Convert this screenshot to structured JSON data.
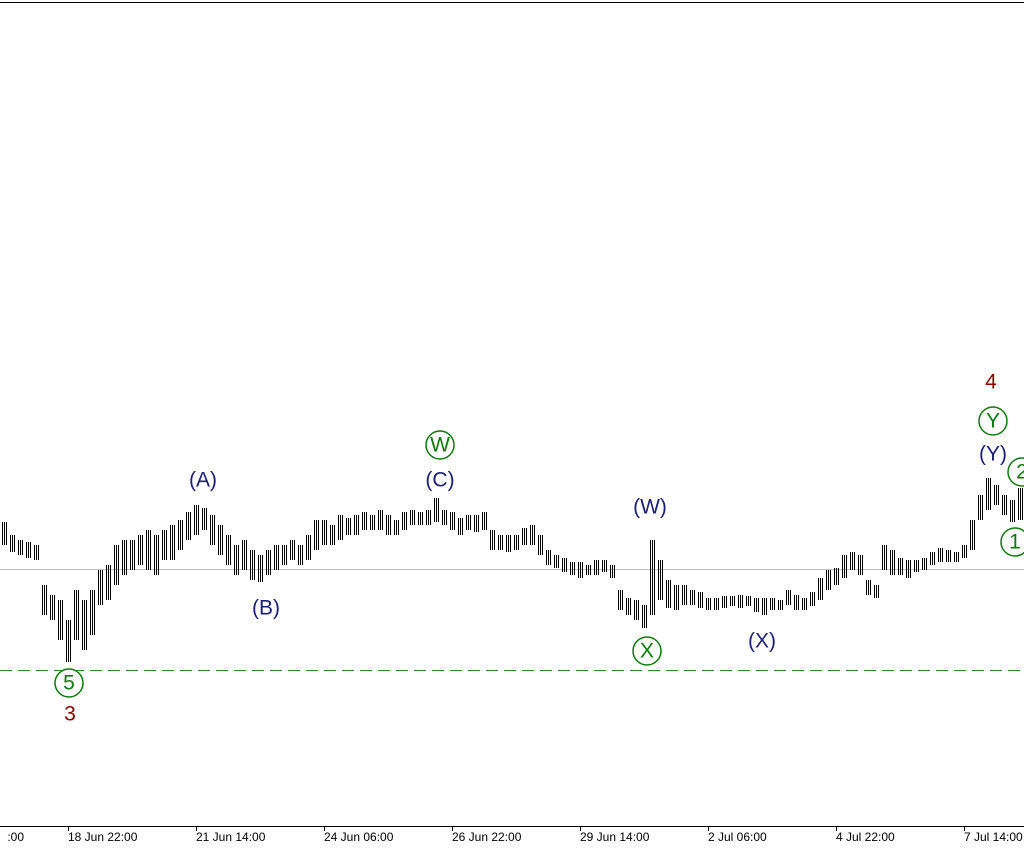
{
  "chart_data": {
    "type": "hilo",
    "categories": [
      ":00",
      null,
      null,
      null,
      null,
      null,
      null,
      null,
      "18 Jun 22:00",
      null,
      null,
      null,
      null,
      null,
      null,
      null,
      null,
      null,
      null,
      null,
      null,
      null,
      null,
      null,
      "21 Jun 14:00",
      null,
      null,
      null,
      null,
      null,
      null,
      null,
      null,
      null,
      null,
      null,
      null,
      null,
      null,
      null,
      "24 Jun 06:00",
      null,
      null,
      null,
      null,
      null,
      null,
      null,
      null,
      null,
      null,
      null,
      null,
      null,
      null,
      null,
      "26 Jun 22:00",
      null,
      null,
      null,
      null,
      null,
      null,
      null,
      null,
      null,
      null,
      null,
      null,
      null,
      null,
      null,
      "29 Jun 14:00",
      null,
      null,
      null,
      null,
      null,
      null,
      null,
      null,
      null,
      null,
      null,
      null,
      null,
      null,
      null,
      "2 Jul 06:00",
      null,
      null,
      null,
      null,
      null,
      null,
      null,
      null,
      null,
      null,
      null,
      null,
      null,
      null,
      null,
      "4 Jul 22:00",
      null,
      null,
      null,
      null,
      null,
      null,
      null,
      null,
      null,
      null,
      null,
      null,
      null,
      null,
      null,
      "7 Jul 14:00",
      null,
      null,
      null,
      null,
      null,
      null,
      null
    ],
    "high": [
      300,
      287,
      282,
      280,
      277,
      237,
      227,
      222,
      202,
      232,
      222,
      232,
      252,
      257,
      277,
      282,
      282,
      287,
      292,
      287,
      292,
      297,
      302,
      310,
      317,
      314,
      307,
      297,
      287,
      277,
      282,
      272,
      267,
      272,
      277,
      277,
      282,
      277,
      287,
      302,
      302,
      297,
      307,
      304,
      307,
      310,
      307,
      312,
      307,
      302,
      310,
      312,
      310,
      312,
      324,
      312,
      310,
      304,
      307,
      307,
      310,
      292,
      287,
      287,
      287,
      294,
      297,
      287,
      272,
      267,
      264,
      260,
      260,
      257,
      262,
      262,
      257,
      232,
      224,
      222,
      217,
      282,
      262,
      242,
      237,
      237,
      232,
      230,
      224,
      224,
      226,
      226,
      227,
      226,
      224,
      224,
      224,
      222,
      232,
      227,
      224,
      230,
      244,
      252,
      254,
      267,
      270,
      267,
      242,
      237,
      277,
      272,
      264,
      262,
      262,
      264,
      270,
      274,
      272,
      270,
      277,
      302,
      327,
      344,
      337,
      327,
      322,
      334
    ],
    "low": [
      277,
      270,
      267,
      264,
      262,
      207,
      202,
      182,
      160,
      182,
      172,
      187,
      217,
      222,
      237,
      247,
      252,
      257,
      252,
      247,
      262,
      262,
      272,
      282,
      287,
      292,
      277,
      267,
      257,
      247,
      252,
      242,
      240,
      247,
      252,
      257,
      262,
      257,
      262,
      272,
      277,
      277,
      282,
      287,
      287,
      292,
      292,
      292,
      287,
      287,
      292,
      297,
      297,
      297,
      300,
      297,
      292,
      287,
      292,
      290,
      292,
      272,
      272,
      270,
      272,
      277,
      277,
      267,
      257,
      254,
      250,
      247,
      244,
      247,
      247,
      250,
      244,
      212,
      207,
      202,
      194,
      207,
      222,
      214,
      212,
      217,
      217,
      214,
      212,
      212,
      214,
      216,
      214,
      216,
      210,
      207,
      212,
      212,
      217,
      212,
      212,
      216,
      222,
      232,
      237,
      244,
      252,
      247,
      227,
      224,
      252,
      247,
      247,
      244,
      250,
      252,
      257,
      260,
      260,
      260,
      264,
      272,
      302,
      312,
      317,
      307,
      300,
      302
    ],
    "color": "#000000",
    "ylim": [
      0,
      822
    ],
    "price_line": 253,
    "price_line_color": "#c0c0c0",
    "level_line": 152,
    "level_line_color": "#2e8b2e",
    "annotations": [
      {
        "text": "(A)",
        "color": "#1c2077",
        "circled": false
      },
      {
        "text": "(B)",
        "color": "#1c2077",
        "circled": false
      },
      {
        "text": "(C)",
        "color": "#1c2077",
        "circled": false
      },
      {
        "text": "W",
        "color": "#0d7a0d",
        "circled": true
      },
      {
        "text": "(W)",
        "color": "#1c2077",
        "circled": false
      },
      {
        "text": "X",
        "color": "#0d7a0d",
        "circled": true
      },
      {
        "text": "(X)",
        "color": "#1c2077",
        "circled": false
      },
      {
        "text": "Y",
        "color": "#0d7a0d",
        "circled": true
      },
      {
        "text": "(Y)",
        "color": "#1c2077",
        "circled": false
      },
      {
        "text": "4",
        "color": "#8b0000",
        "circled": false
      },
      {
        "text": "5",
        "color": "#0d7a0d",
        "circled": true
      },
      {
        "text": "3",
        "color": "#8b0000",
        "circled": false
      },
      {
        "text": "2",
        "color": "#0d7a0d",
        "circled": true
      },
      {
        "text": "1",
        "color": "#0d7a0d",
        "circled": true
      }
    ]
  }
}
